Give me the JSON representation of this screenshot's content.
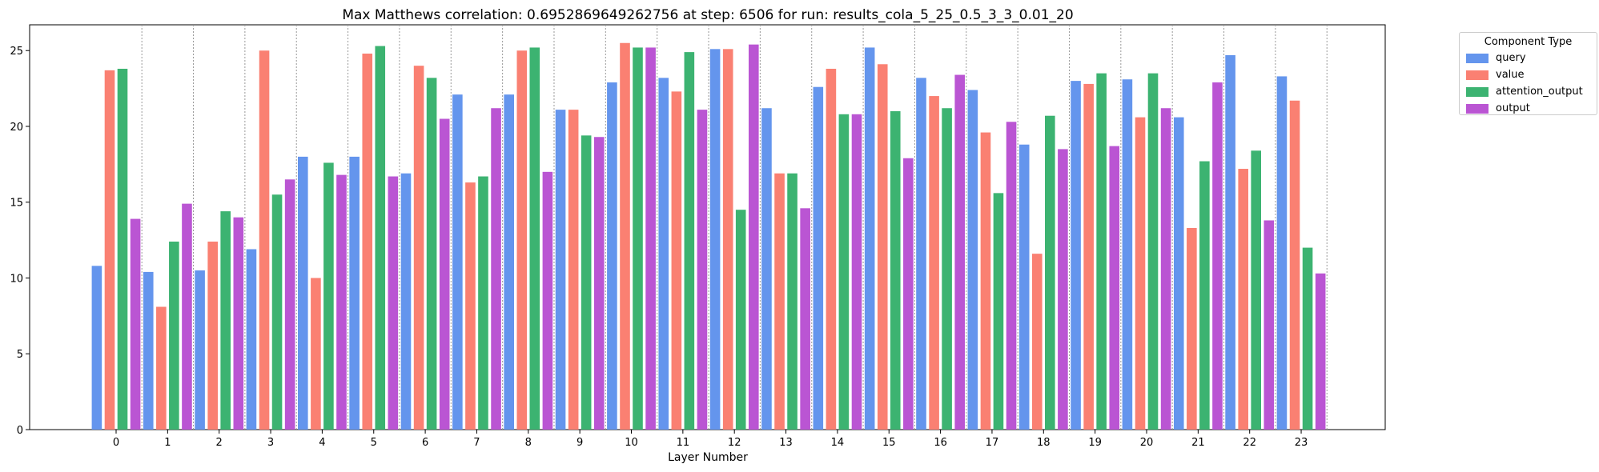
{
  "chart_data": {
    "type": "bar",
    "title": "Max Matthews correlation: 0.6952869649262756 at step: 6506 for run: results_cola_5_25_0.5_3_3_0.01_20",
    "xlabel": "Layer Number",
    "ylabel": "",
    "ylim": [
      0,
      26.7
    ],
    "yticks": [
      0,
      5,
      10,
      15,
      20,
      25
    ],
    "grid": "vertical dashed separators between layers",
    "legend_title": "Component Type",
    "legend_position": "outside-right-top",
    "categories": [
      "0",
      "1",
      "2",
      "3",
      "4",
      "5",
      "6",
      "7",
      "8",
      "9",
      "10",
      "11",
      "12",
      "13",
      "14",
      "15",
      "16",
      "17",
      "18",
      "19",
      "20",
      "21",
      "22",
      "23"
    ],
    "series": [
      {
        "name": "query",
        "color": "#6495ED",
        "values": [
          10.8,
          10.4,
          10.5,
          11.9,
          18.0,
          18.0,
          16.9,
          22.1,
          22.1,
          21.1,
          22.9,
          23.2,
          25.1,
          21.2,
          22.6,
          25.2,
          23.2,
          22.4,
          18.8,
          23.0,
          23.1,
          20.6,
          24.7,
          23.3
        ]
      },
      {
        "name": "value",
        "color": "#FA8072",
        "values": [
          23.7,
          8.1,
          12.4,
          25.0,
          10.0,
          24.8,
          24.0,
          16.3,
          25.0,
          21.1,
          25.5,
          22.3,
          25.1,
          16.9,
          23.8,
          24.1,
          22.0,
          19.6,
          11.6,
          22.8,
          20.6,
          13.3,
          17.2,
          21.7
        ]
      },
      {
        "name": "attention_output",
        "color": "#3CB371",
        "values": [
          23.8,
          12.4,
          14.4,
          15.5,
          17.6,
          25.3,
          23.2,
          16.7,
          25.2,
          19.4,
          25.2,
          24.9,
          14.5,
          16.9,
          20.8,
          21.0,
          21.2,
          15.6,
          20.7,
          23.5,
          23.5,
          17.7,
          18.4,
          12.0
        ]
      },
      {
        "name": "output",
        "color": "#BA55D3",
        "values": [
          13.9,
          14.9,
          14.0,
          16.5,
          16.8,
          16.7,
          20.5,
          21.2,
          17.0,
          19.3,
          25.2,
          21.1,
          25.4,
          14.6,
          20.8,
          17.9,
          23.4,
          20.3,
          18.5,
          18.7,
          21.2,
          22.9,
          13.8,
          10.3
        ]
      }
    ]
  }
}
